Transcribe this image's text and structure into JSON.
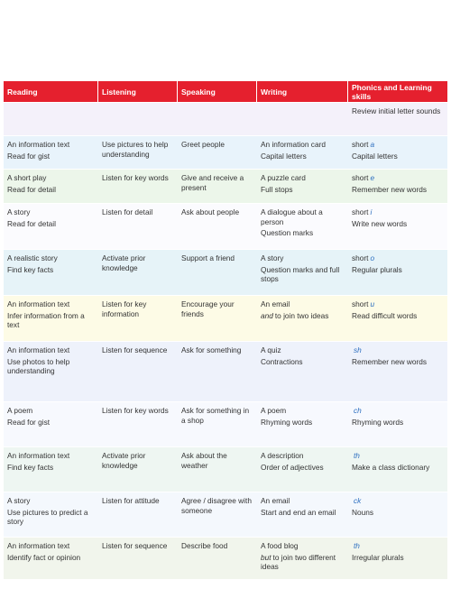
{
  "table": {
    "header": [
      "Reading",
      "Listening",
      "Speaking",
      "Writing",
      "Phonics and Learning skills"
    ],
    "rows": [
      [
        [],
        [],
        [],
        [],
        [
          "Review initial letter sounds"
        ]
      ],
      [
        [
          "An information text",
          "Read for gist"
        ],
        [
          "Use pictures to help understanding"
        ],
        [
          "Greet people"
        ],
        [
          "An information card",
          "Capital letters"
        ],
        [
          {
            "prefix": "short",
            "sound": "a"
          },
          "Capital letters"
        ]
      ],
      [
        [
          "A short play",
          "Read for detail"
        ],
        [
          "Listen for key words"
        ],
        [
          "Give and receive a present"
        ],
        [
          "A puzzle card",
          "Full stops"
        ],
        [
          {
            "prefix": "short",
            "sound": "e"
          },
          "Remember new words"
        ]
      ],
      [
        [
          "A story",
          "Read for detail"
        ],
        [
          "Listen for detail"
        ],
        [
          "Ask about people"
        ],
        [
          "A dialogue about a person",
          "Question marks"
        ],
        [
          {
            "prefix": "short",
            "sound": "i"
          },
          "Write new words"
        ]
      ],
      [
        [
          "A realistic story",
          "Find key facts"
        ],
        [
          "Activate prior knowledge"
        ],
        [
          "Support a friend"
        ],
        [
          "A story",
          "Question marks and full stops"
        ],
        [
          {
            "prefix": "short",
            "sound": "o"
          },
          "Regular plurals"
        ]
      ],
      [
        [
          "An information text",
          "Infer information from a text"
        ],
        [
          "Listen for key information"
        ],
        [
          "Encourage your friends"
        ],
        [
          "An email",
          {
            "em": "and",
            "rest": "to join two ideas"
          }
        ],
        [
          {
            "prefix": "short",
            "sound": "u"
          },
          "Read difficult words"
        ]
      ],
      [
        [
          "An information text",
          "Use photos to help understanding"
        ],
        [
          "Listen for sequence"
        ],
        [
          "Ask for something"
        ],
        [
          "A quiz",
          "Contractions"
        ],
        [
          {
            "sound": "sh"
          },
          "Remember new words"
        ]
      ],
      [
        [
          "A poem",
          "Read for gist"
        ],
        [
          "Listen for key words"
        ],
        [
          "Ask for something in a shop"
        ],
        [
          "A poem",
          "Rhyming words"
        ],
        [
          {
            "sound": "ch"
          },
          "Rhyming words"
        ]
      ],
      [
        [
          "An information text",
          "Find key facts"
        ],
        [
          "Activate prior knowledge"
        ],
        [
          "Ask about the weather"
        ],
        [
          "A description",
          "Order of adjectives"
        ],
        [
          {
            "sound": "th"
          },
          "Make a class dictionary"
        ]
      ],
      [
        [
          "A story",
          "Use pictures to predict a story"
        ],
        [
          "Listen for attitude"
        ],
        [
          "Agree / disagree with someone"
        ],
        [
          "An email",
          "Start and end an email"
        ],
        [
          {
            "sound": "ck"
          },
          "Nouns"
        ]
      ],
      [
        [
          "An information text",
          "Identify fact or opinion"
        ],
        [
          "Listen for sequence"
        ],
        [
          "Describe food"
        ],
        [
          "A food blog",
          {
            "em": "but",
            "rest": "to join two different ideas"
          }
        ],
        [
          {
            "sound": "th"
          },
          "Irregular plurals"
        ]
      ]
    ]
  }
}
